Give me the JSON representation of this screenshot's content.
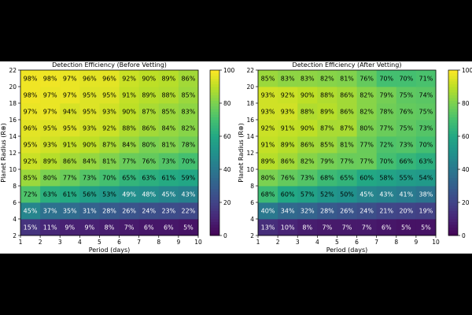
{
  "chart_data": [
    {
      "type": "heatmap",
      "title": "Detection Efficiency (Before Vetting)",
      "xlabel": "Period (days)",
      "ylabel": "Planet Radius (R⊕)",
      "x_ticks": [
        1,
        2,
        3,
        4,
        5,
        6,
        7,
        8,
        9,
        10
      ],
      "y_ticks": [
        2,
        4,
        6,
        8,
        10,
        12,
        14,
        16,
        18,
        20,
        22
      ],
      "x_bins": [
        1,
        2,
        3,
        4,
        5,
        6,
        7,
        8,
        9,
        10
      ],
      "y_bins": [
        2,
        4,
        6,
        8,
        10,
        12,
        14,
        16,
        18,
        20,
        22
      ],
      "xlim": [
        1,
        10
      ],
      "ylim": [
        2,
        22
      ],
      "colorbar": {
        "min": 0,
        "max": 100,
        "ticks": [
          0,
          20,
          40,
          60,
          80,
          100
        ],
        "colormap": "viridis"
      },
      "cell_labels_percent": true,
      "values": [
        [
          15,
          11,
          9,
          9,
          8,
          7,
          6,
          6,
          5
        ],
        [
          45,
          37,
          35,
          31,
          28,
          26,
          24,
          23,
          22
        ],
        [
          72,
          63,
          61,
          56,
          53,
          49,
          48,
          45,
          43
        ],
        [
          85,
          80,
          77,
          73,
          70,
          65,
          63,
          61,
          59
        ],
        [
          92,
          89,
          86,
          84,
          81,
          77,
          76,
          73,
          70
        ],
        [
          95,
          93,
          91,
          90,
          87,
          84,
          80,
          81,
          78
        ],
        [
          96,
          95,
          95,
          93,
          92,
          88,
          86,
          84,
          82
        ],
        [
          97,
          97,
          94,
          95,
          93,
          90,
          87,
          85,
          83
        ],
        [
          98,
          97,
          97,
          95,
          95,
          91,
          89,
          88,
          85
        ],
        [
          98,
          98,
          97,
          96,
          96,
          92,
          90,
          89,
          86
        ]
      ]
    },
    {
      "type": "heatmap",
      "title": "Detection Efficiency (After Vetting)",
      "xlabel": "Period (days)",
      "ylabel": "Planet Radius (R⊕)",
      "x_ticks": [
        1,
        2,
        3,
        4,
        5,
        6,
        7,
        8,
        9,
        10
      ],
      "y_ticks": [
        2,
        4,
        6,
        8,
        10,
        12,
        14,
        16,
        18,
        20,
        22
      ],
      "x_bins": [
        1,
        2,
        3,
        4,
        5,
        6,
        7,
        8,
        9,
        10
      ],
      "y_bins": [
        2,
        4,
        6,
        8,
        10,
        12,
        14,
        16,
        18,
        20,
        22
      ],
      "xlim": [
        1,
        10
      ],
      "ylim": [
        2,
        22
      ],
      "colorbar": {
        "min": 0,
        "max": 100,
        "ticks": [
          0,
          20,
          40,
          60,
          80,
          100
        ],
        "colormap": "viridis"
      },
      "cell_labels_percent": true,
      "values": [
        [
          13,
          10,
          8,
          7,
          7,
          7,
          6,
          5,
          5
        ],
        [
          40,
          34,
          32,
          28,
          26,
          24,
          21,
          20,
          19
        ],
        [
          68,
          60,
          57,
          52,
          50,
          45,
          43,
          41,
          38
        ],
        [
          80,
          76,
          73,
          68,
          65,
          60,
          58,
          55,
          54
        ],
        [
          89,
          86,
          82,
          79,
          77,
          77,
          70,
          66,
          63
        ],
        [
          91,
          89,
          86,
          85,
          81,
          77,
          72,
          73,
          70
        ],
        [
          92,
          91,
          90,
          87,
          87,
          80,
          77,
          75,
          73
        ],
        [
          93,
          93,
          88,
          89,
          86,
          82,
          78,
          76,
          75
        ],
        [
          93,
          92,
          90,
          88,
          86,
          82,
          79,
          75,
          74
        ],
        [
          85,
          83,
          83,
          82,
          81,
          76,
          70,
          70,
          71
        ]
      ]
    }
  ]
}
